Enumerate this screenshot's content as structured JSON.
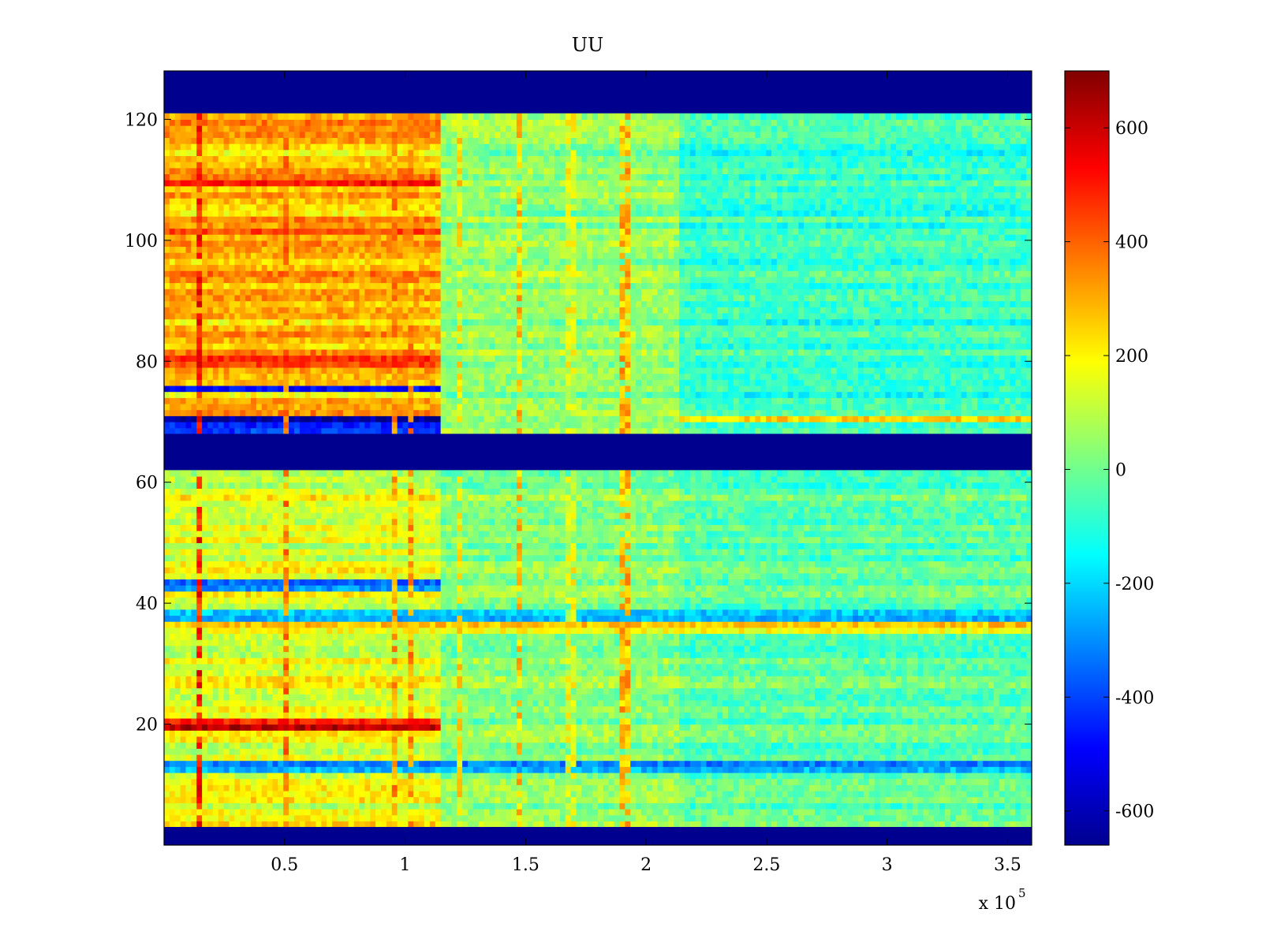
{
  "chart_data": {
    "type": "heatmap",
    "title": "UU",
    "xlabel": "",
    "ylabel": "",
    "x_exponent_label": "x 10",
    "x_exponent_power": "5",
    "xlim": [
      0,
      3.6
    ],
    "ylim": [
      0,
      128
    ],
    "x_ticks": [
      {
        "value": 0.5,
        "label": "0.5"
      },
      {
        "value": 1.0,
        "label": "1"
      },
      {
        "value": 1.5,
        "label": "1.5"
      },
      {
        "value": 2.0,
        "label": "2"
      },
      {
        "value": 2.5,
        "label": "2.5"
      },
      {
        "value": 3.0,
        "label": "3"
      },
      {
        "value": 3.5,
        "label": "3.5"
      }
    ],
    "y_ticks": [
      {
        "value": 20,
        "label": "20"
      },
      {
        "value": 40,
        "label": "40"
      },
      {
        "value": 60,
        "label": "60"
      },
      {
        "value": 80,
        "label": "80"
      },
      {
        "value": 100,
        "label": "100"
      },
      {
        "value": 120,
        "label": "120"
      }
    ],
    "colorbar": {
      "colormap": "jet",
      "range": [
        -660,
        700
      ],
      "ticks": [
        {
          "value": -600,
          "label": "-600"
        },
        {
          "value": -400,
          "label": "-400"
        },
        {
          "value": -200,
          "label": "-200"
        },
        {
          "value": 0,
          "label": "0"
        },
        {
          "value": 200,
          "label": "200"
        },
        {
          "value": 400,
          "label": "400"
        },
        {
          "value": 600,
          "label": "600"
        }
      ]
    },
    "empty_rows": [
      [
        0,
        3
      ],
      [
        62,
        68
      ],
      [
        121,
        128
      ]
    ],
    "regions": [
      {
        "x": [
          0,
          1.15
        ],
        "y": [
          3,
          62
        ],
        "mean": 150
      },
      {
        "x": [
          0,
          1.15
        ],
        "y": [
          68,
          121
        ],
        "mean": 280
      },
      {
        "x": [
          1.15,
          2.13
        ],
        "y": [
          3,
          62
        ],
        "mean": 30
      },
      {
        "x": [
          1.15,
          2.13
        ],
        "y": [
          68,
          121
        ],
        "mean": 40
      },
      {
        "x": [
          2.13,
          3.6
        ],
        "y": [
          3,
          62
        ],
        "mean": -30
      },
      {
        "x": [
          2.13,
          3.6
        ],
        "y": [
          68,
          121
        ],
        "mean": -80
      }
    ],
    "row_anomalies": [
      {
        "y": 70.5,
        "x": [
          0,
          1.15
        ],
        "value": -620
      },
      {
        "y": 69,
        "x": [
          0,
          1.15
        ],
        "value": -450
      },
      {
        "y": 75.5,
        "x": [
          0,
          1.15
        ],
        "value": -500
      },
      {
        "y": 110,
        "x": [
          0,
          1.15
        ],
        "value": 430
      },
      {
        "y": 102,
        "x": [
          0,
          1.15
        ],
        "value": 400
      },
      {
        "y": 80,
        "x": [
          0,
          1.15
        ],
        "value": 480
      },
      {
        "y": 20,
        "x": [
          0,
          1.15
        ],
        "value": 560
      },
      {
        "y": 43,
        "x": [
          0,
          1.15
        ],
        "value": -330
      },
      {
        "y": 70.5,
        "x": [
          2.13,
          3.6
        ],
        "value": 240
      },
      {
        "y": 38,
        "x": [
          0,
          3.6
        ],
        "value": -250
      },
      {
        "y": 36,
        "x": [
          0,
          3.6
        ],
        "value": 180
      },
      {
        "y": 13,
        "x": [
          0,
          3.6
        ],
        "value": -280
      }
    ],
    "column_streaks": [
      {
        "x": 0.15,
        "value": 600
      },
      {
        "x": 0.5,
        "value": 450
      },
      {
        "x": 0.95,
        "value": 420
      },
      {
        "x": 1.03,
        "value": 420
      },
      {
        "x": 1.22,
        "value": 300
      },
      {
        "x": 1.47,
        "value": 350
      },
      {
        "x": 1.69,
        "value": 250
      },
      {
        "x": 1.91,
        "value": 380
      }
    ]
  }
}
